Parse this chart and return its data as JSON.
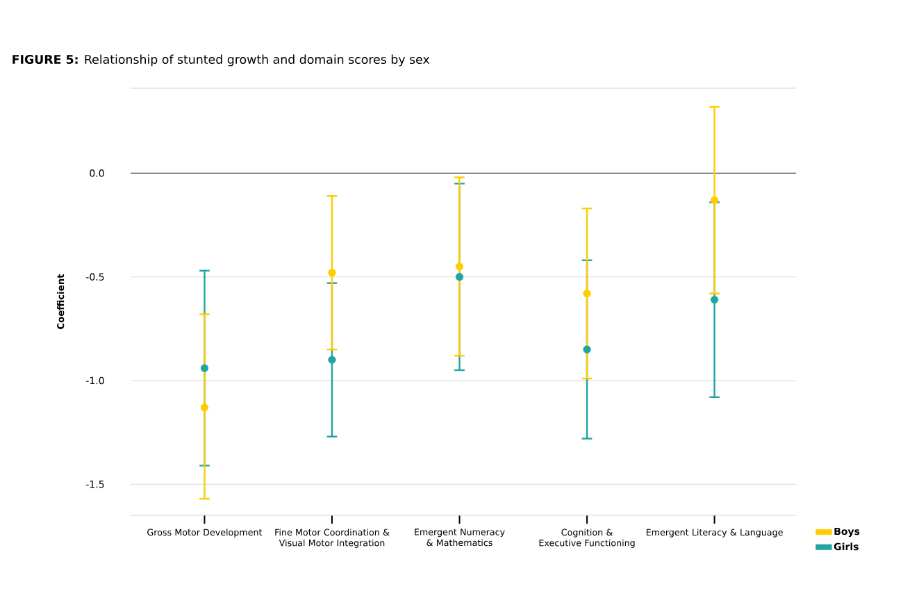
{
  "chart_data": {
    "type": "scatter",
    "title": "**FIGURE 5:** Relationship of stunted growth and domain scores by sex",
    "ylabel": "Coefficient",
    "categories": [
      "Gross Motor Development",
      "Fine Motor Coordination & Visual Motor Integration",
      "Emergent Numeracy & Mathematics",
      "Cognition & Executive Functioning",
      "Emergent Literacy & Language"
    ],
    "series": [
      {
        "name": "Boys",
        "color": "#ffcc00",
        "values": [
          -1.13,
          -0.48,
          -0.45,
          -0.58,
          -0.13
        ],
        "errors": [
          [
            -1.57,
            -0.68
          ],
          [
            -0.85,
            -0.11
          ],
          [
            -0.88,
            -0.02
          ],
          [
            -0.99,
            -0.17
          ],
          [
            -0.58,
            0.32
          ]
        ]
      },
      {
        "name": "Girls",
        "color": "#21a5a1",
        "values": [
          -0.94,
          -0.9,
          -0.5,
          -0.85,
          -0.61
        ],
        "errors": [
          [
            -1.41,
            -0.47
          ],
          [
            -1.27,
            -0.53
          ],
          [
            -0.95,
            -0.05
          ],
          [
            -1.28,
            -0.42
          ],
          [
            -1.08,
            -0.14
          ]
        ]
      }
    ],
    "ylim": [
      -1.65,
      0.41
    ],
    "yticks": [
      {
        "value": 0,
        "label": "0.0"
      },
      -0.5,
      {
        "value": -1,
        "label": "-1.0"
      },
      -1.5
    ],
    "ref_lines": [
      {
        "axis": "y",
        "value": 0,
        "color": "#555555"
      }
    ],
    "grid": "y",
    "legend": "right",
    "marker": "circle"
  }
}
